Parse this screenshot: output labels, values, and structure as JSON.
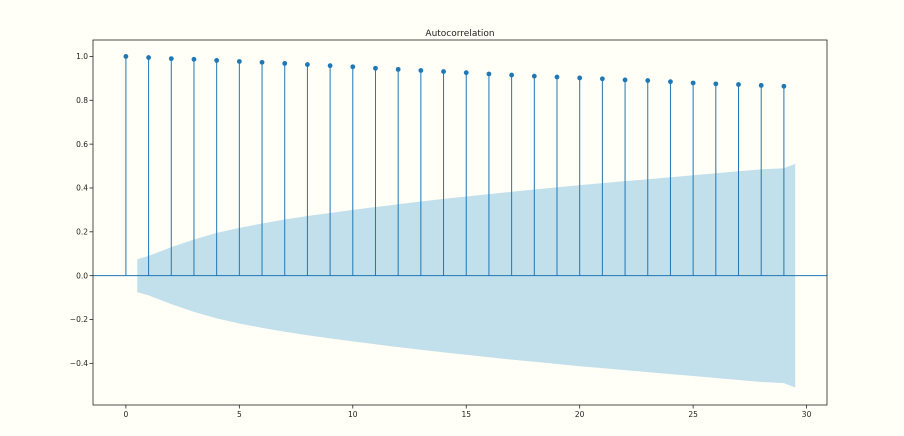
{
  "chart_data": {
    "type": "stem",
    "title": "Autocorrelation",
    "xlabel": "",
    "ylabel": "",
    "xlim": [
      -1.45,
      30.9
    ],
    "ylim": [
      -0.59,
      1.075
    ],
    "x_ticks": [
      0,
      5,
      10,
      15,
      20,
      25,
      30
    ],
    "x_tick_labels": [
      "0",
      "5",
      "10",
      "15",
      "20",
      "25",
      "30"
    ],
    "y_ticks": [
      -0.4,
      -0.2,
      0.0,
      0.2,
      0.4,
      0.6,
      0.8,
      1.0
    ],
    "y_tick_labels": [
      "−0.4",
      "−0.2",
      "0.0",
      "0.2",
      "0.4",
      "0.6",
      "0.8",
      "1.0"
    ],
    "lags": [
      0,
      1,
      2,
      3,
      4,
      5,
      6,
      7,
      8,
      9,
      10,
      11,
      12,
      13,
      14,
      15,
      16,
      17,
      18,
      19,
      20,
      21,
      22,
      23,
      24,
      25,
      26,
      27,
      28,
      29
    ],
    "acf": [
      1.0,
      0.995,
      0.99,
      0.987,
      0.982,
      0.977,
      0.973,
      0.968,
      0.963,
      0.958,
      0.953,
      0.946,
      0.941,
      0.936,
      0.931,
      0.926,
      0.92,
      0.915,
      0.91,
      0.906,
      0.902,
      0.898,
      0.893,
      0.89,
      0.885,
      0.879,
      0.875,
      0.872,
      0.868,
      0.864
    ],
    "confint_x": [
      0.5,
      1,
      2,
      3,
      4,
      5,
      6,
      7,
      8,
      9,
      10,
      11,
      12,
      13,
      14,
      15,
      16,
      17,
      18,
      19,
      20,
      21,
      22,
      23,
      24,
      25,
      26,
      27,
      28,
      29,
      29.5
    ],
    "confint_upper": [
      0.075,
      0.09,
      0.13,
      0.165,
      0.195,
      0.218,
      0.238,
      0.256,
      0.272,
      0.286,
      0.3,
      0.313,
      0.326,
      0.338,
      0.35,
      0.361,
      0.372,
      0.383,
      0.393,
      0.403,
      0.413,
      0.422,
      0.431,
      0.44,
      0.449,
      0.458,
      0.467,
      0.476,
      0.485,
      0.49,
      0.51
    ],
    "grid": false,
    "legend": "none",
    "colors": {
      "stem": "#1f77b4",
      "confint": "#add6e8",
      "background": "#fffff7",
      "axes": "#222222"
    }
  }
}
